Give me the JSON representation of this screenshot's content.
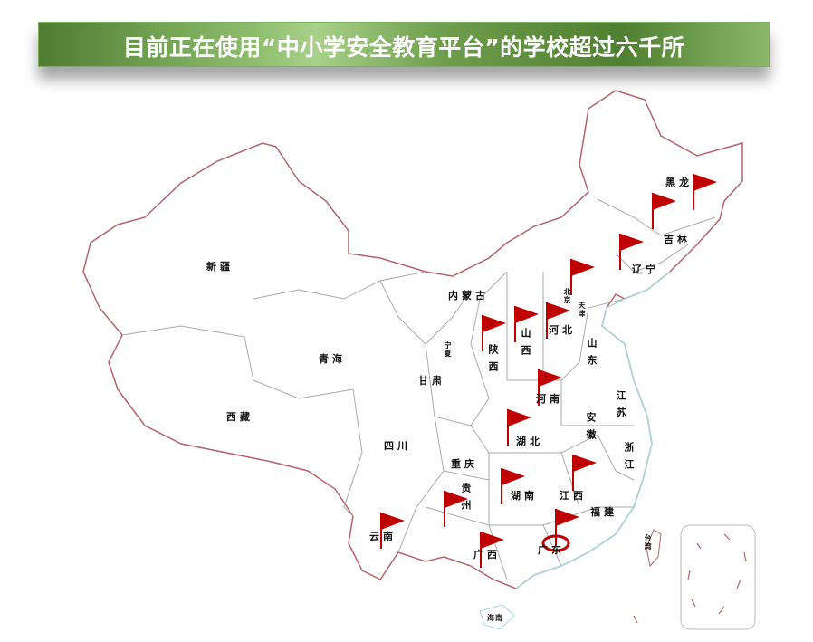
{
  "banner": {
    "title": "目前正在使用“中小学安全教育平台”的学校超过六千所"
  },
  "colors": {
    "border": "#b5636a",
    "province_line": "#aaaaaa",
    "coast": "#a8d8da",
    "flag": "#c00000",
    "banner_green": "#6f9f4c"
  },
  "provinces": [
    {
      "name": "黑龙"
    },
    {
      "name": "吉林"
    },
    {
      "name": "辽宁"
    },
    {
      "name": "内蒙古"
    },
    {
      "name": "北京"
    },
    {
      "name": "天津"
    },
    {
      "name": "河北"
    },
    {
      "name": "山西"
    },
    {
      "name": "陕西"
    },
    {
      "name": "宁夏"
    },
    {
      "name": "山东"
    },
    {
      "name": "新疆"
    },
    {
      "name": "青海"
    },
    {
      "name": "甘肃"
    },
    {
      "name": "西藏"
    },
    {
      "name": "河南"
    },
    {
      "name": "江苏"
    },
    {
      "name": "安徽"
    },
    {
      "name": "湖北"
    },
    {
      "name": "四川"
    },
    {
      "name": "重庆"
    },
    {
      "name": "浙江"
    },
    {
      "name": "贵州"
    },
    {
      "name": "湖南"
    },
    {
      "name": "江西"
    },
    {
      "name": "福建"
    },
    {
      "name": "云南"
    },
    {
      "name": "广西"
    },
    {
      "name": "广东"
    },
    {
      "name": "台湾"
    },
    {
      "name": "海南"
    }
  ],
  "flags": [
    "黑龙江",
    "吉林",
    "辽宁",
    "北京",
    "陕西",
    "山西",
    "河北",
    "河南",
    "湖北",
    "湖南",
    "江西",
    "贵州",
    "云南",
    "广西",
    "广东"
  ],
  "highlighted_flag": "广东",
  "flag_icon": "red-flag-icon"
}
